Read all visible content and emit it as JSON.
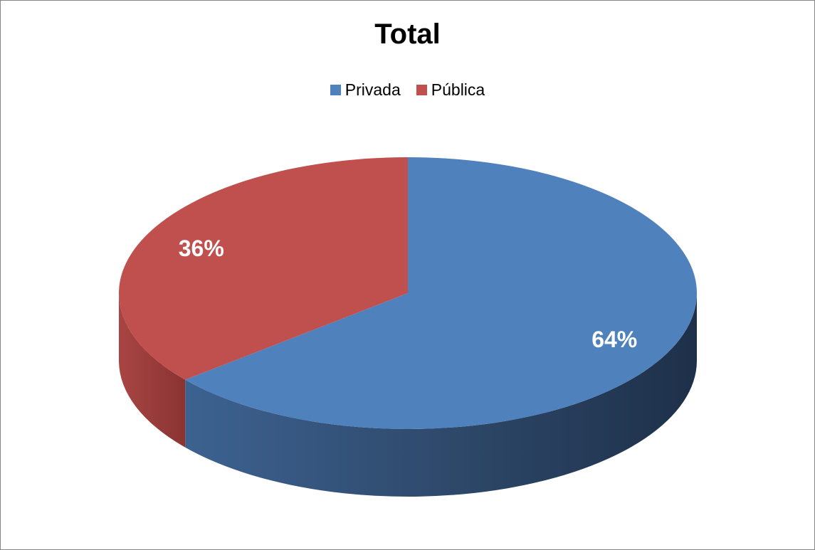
{
  "chart_data": {
    "type": "pie",
    "style": "3d",
    "title": "Total",
    "legend_position": "top",
    "categories": [
      "Privada",
      "Pública"
    ],
    "values": [
      64,
      36
    ],
    "labels": [
      "64%",
      "36%"
    ],
    "colors": {
      "Privada": "#4f81bd",
      "Pública": "#c0504d"
    },
    "side_colors": {
      "Privada": "#304d72",
      "Pública": "#8f3b39"
    }
  }
}
